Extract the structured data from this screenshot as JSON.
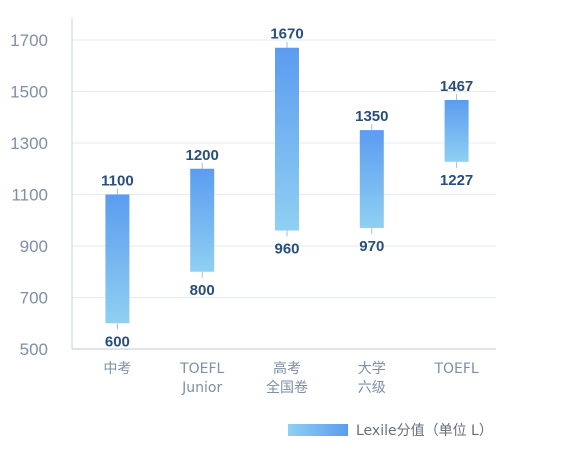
{
  "chart_data": {
    "type": "bar",
    "subtype": "floating-range",
    "categories": [
      [
        "中考"
      ],
      [
        "TOEFL",
        "Junior"
      ],
      [
        "高考",
        "全国卷"
      ],
      [
        "大学",
        "六级"
      ],
      [
        "TOEFL"
      ]
    ],
    "series": [
      {
        "name": "Lexile分值（单位 L）",
        "low": [
          600,
          800,
          960,
          970,
          1227
        ],
        "high": [
          1100,
          1200,
          1670,
          1350,
          1467
        ],
        "low_labels": [
          "600",
          "800",
          "960",
          "970",
          "1227"
        ],
        "high_labels": [
          "1100",
          "1200",
          "1670",
          "1350",
          "1467"
        ]
      }
    ],
    "title": "",
    "xlabel": "",
    "ylabel": "",
    "ylim": [
      500,
      1700
    ],
    "yticks": [
      500,
      700,
      900,
      1100,
      1300,
      1500,
      1700
    ],
    "ytick_labels": [
      "500",
      "700",
      "900",
      "1100",
      "1300",
      "1500",
      "1700"
    ],
    "grid": "horizontal",
    "legend": "bottom-right",
    "colors": {
      "bar_top": "#5b9cf0",
      "bar_bottom": "#8fd0f2",
      "grid": "#e3ebf3",
      "axis": "#c9d3de",
      "label": "#2a4f78",
      "tick": "#7f8fa6"
    }
  }
}
